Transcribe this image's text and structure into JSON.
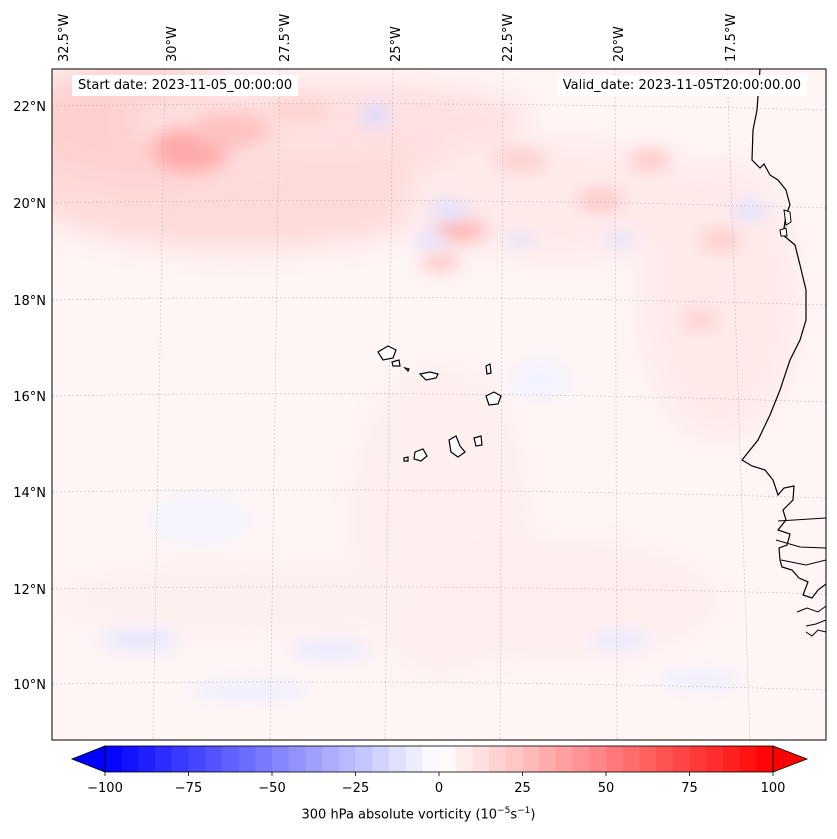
{
  "header": {
    "start_date": "Start date: 2023-11-05_00:00:00",
    "valid_date": "Valid_date: 2023-11-05T20:00:00.00"
  },
  "map": {
    "lon_labels": [
      "32.5°W",
      "30°W",
      "27.5°W",
      "25°W",
      "22.5°W",
      "20°W",
      "17.5°W"
    ],
    "lat_labels": [
      "22°N",
      "20°N",
      "18°N",
      "16°N",
      "14°N",
      "12°N",
      "10°N"
    ],
    "coastline_color": "#000000",
    "field": "300 hPa absolute vorticity"
  },
  "colorbar": {
    "label_main": "300 hPa absolute vorticity (10",
    "label_exp1": "−5",
    "label_mid": "s",
    "label_exp2": "−1",
    "label_close": ")",
    "ticks": [
      "−100",
      "−75",
      "−50",
      "−25",
      "0",
      "25",
      "50",
      "75",
      "100"
    ],
    "min": -100,
    "max": 100,
    "colormap": "bwr",
    "color_min": "#0000ff",
    "color_mid": "#ffffff",
    "color_max": "#ff0000"
  }
}
